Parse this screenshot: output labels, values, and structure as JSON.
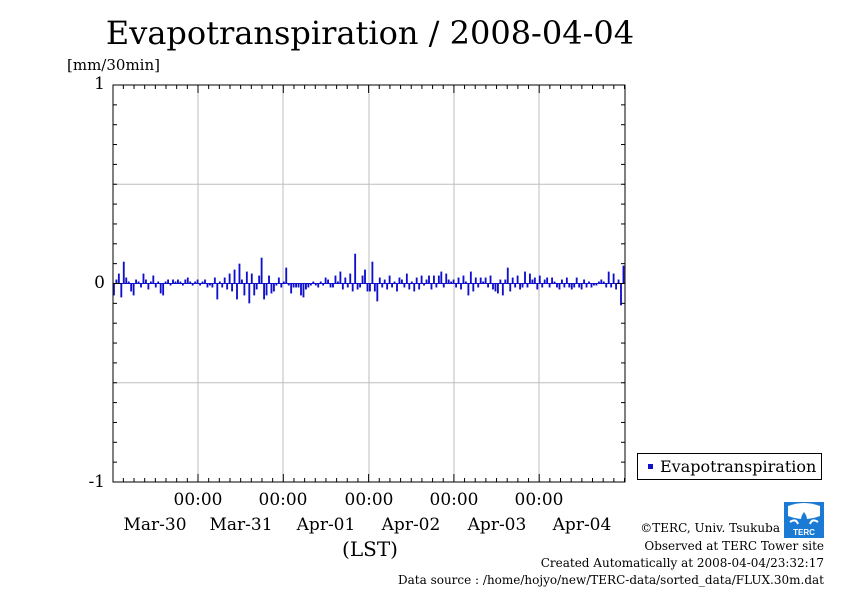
{
  "chart_data": {
    "type": "bar",
    "title": "Evapotranspiration / 2008-04-04",
    "ylabel": "[mm/30min]",
    "xlabel": "(LST)",
    "ylim": [
      -1,
      1
    ],
    "yticks": [
      "1",
      "0",
      "-1"
    ],
    "x_time_ticks": [
      "00:00",
      "00:00",
      "00:00",
      "00:00",
      "00:00"
    ],
    "x_date_ticks": [
      "Mar-30",
      "Mar-31",
      "Apr-01",
      "Apr-02",
      "Apr-03",
      "Apr-04"
    ],
    "grid": true,
    "legend_position": "bottom-right, outside plot",
    "bar_color": "#1010cc",
    "series": [
      {
        "name": "Evapotranspiration",
        "values": [
          -0.06,
          0.02,
          0.05,
          -0.07,
          0.11,
          0.03,
          0.01,
          -0.04,
          -0.06,
          0.02,
          0.01,
          -0.02,
          0.05,
          0.02,
          -0.03,
          0.01,
          0.04,
          -0.02,
          0.01,
          -0.05,
          -0.06,
          0.01,
          0.02,
          -0.01,
          0.02,
          0.01,
          0.02,
          0.01,
          -0.01,
          0.02,
          0.03,
          0.01,
          -0.01,
          0.01,
          0.02,
          -0.01,
          0.01,
          0.02,
          -0.02,
          -0.01,
          -0.02,
          0.03,
          -0.08,
          0.01,
          -0.02,
          0.03,
          -0.03,
          0.05,
          -0.04,
          0.07,
          -0.08,
          0.1,
          0.02,
          -0.06,
          0.06,
          -0.1,
          0.05,
          -0.06,
          -0.03,
          0.04,
          0.13,
          -0.08,
          -0.06,
          0.04,
          -0.05,
          -0.04,
          -0.01,
          0.03,
          -0.02,
          0.01,
          0.08,
          -0.01,
          -0.05,
          -0.02,
          -0.02,
          -0.02,
          -0.06,
          -0.07,
          -0.03,
          -0.02,
          -0.01,
          0.01,
          -0.01,
          -0.02,
          0.01,
          -0.01,
          0.03,
          0.02,
          -0.02,
          -0.02,
          0.04,
          0.01,
          0.06,
          -0.03,
          0.03,
          -0.02,
          0.05,
          -0.04,
          0.15,
          -0.03,
          -0.02,
          0.04,
          0.07,
          -0.04,
          -0.04,
          0.11,
          -0.04,
          -0.09,
          0.03,
          -0.02,
          0.02,
          -0.03,
          0.04,
          -0.02,
          0.01,
          -0.04,
          0.03,
          0.02,
          -0.02,
          0.05,
          -0.03,
          0.01,
          -0.04,
          0.03,
          -0.03,
          0.04,
          -0.01,
          0.02,
          0.04,
          -0.03,
          0.04,
          -0.02,
          0.04,
          0.06,
          -0.02,
          0.05,
          0.02,
          0.01,
          0.02,
          -0.02,
          0.03,
          -0.03,
          0.04,
          0.01,
          -0.06,
          0.06,
          -0.04,
          0.03,
          -0.02,
          0.03,
          0.01,
          0.03,
          -0.02,
          0.04,
          -0.03,
          -0.04,
          -0.05,
          0.02,
          -0.06,
          0.02,
          0.08,
          -0.04,
          0.03,
          -0.02,
          0.04,
          -0.03,
          -0.02,
          0.06,
          -0.02,
          0.05,
          0.02,
          0.03,
          -0.03,
          0.04,
          -0.02,
          0.02,
          0.03,
          -0.02,
          0.03,
          0.01,
          -0.02,
          -0.03,
          0.02,
          -0.02,
          0.03,
          -0.02,
          -0.03,
          -0.02,
          0.03,
          -0.02,
          -0.03,
          0.02,
          -0.02,
          0.01,
          -0.02,
          -0.01,
          -0.01,
          0.01,
          0.02,
          0.01,
          -0.02,
          0.06,
          -0.02,
          0.05,
          -0.03,
          0.02,
          -0.11,
          0.09
        ]
      }
    ]
  },
  "credits": {
    "copyright": "©TERC, Univ. Tsukuba",
    "observed": "Observed at TERC Tower site",
    "created": "Created Automatically at 2008-04-04/23:32:17",
    "source": "Data source : /home/hojyo/new/TERC-data/sorted_data/FLUX.30m.dat"
  },
  "logo": {
    "name": "terc-logo-icon",
    "text": "TERC",
    "color": "#1a7ad4"
  }
}
